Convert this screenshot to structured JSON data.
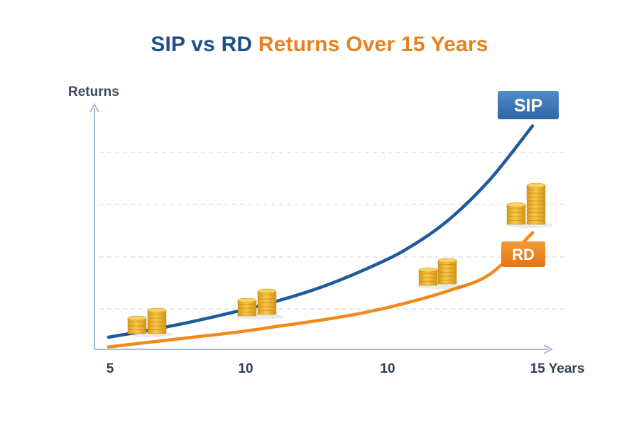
{
  "colors": {
    "sip": "#1f5a9a",
    "sip_label_bg": "#3a74b4",
    "rd": "#f08a1c",
    "rd_label_bg": "#eb7d1a",
    "axis": "#a9bdd6",
    "grid": "#d5dde6",
    "coin": "#f2b530",
    "coin_dark": "#c88a12",
    "text": "#2e3f55"
  },
  "title": {
    "part_a": "SIP vs RD",
    "part_b": "Returns Over 15 Years"
  },
  "chart_data": {
    "type": "line",
    "title": "SIP vs RD Returns Over 15 Years",
    "xlabel": "",
    "ylabel": "Returns",
    "x_tick_labels": [
      "5",
      "10",
      "10",
      "15 Years"
    ],
    "grid": "horizontal dashed",
    "y_ticks_printed": false,
    "series": [
      {
        "name": "SIP",
        "x": [
          0,
          1,
          2,
          3,
          4,
          5,
          6,
          7,
          8,
          9,
          10
        ],
        "values": [
          5,
          8,
          11.5,
          15.5,
          20,
          25.5,
          32.5,
          41,
          53,
          70,
          92
        ]
      },
      {
        "name": "RD",
        "x": [
          0,
          1,
          2,
          3,
          4,
          5,
          6,
          7,
          8,
          9,
          10
        ],
        "values": [
          1,
          3,
          5,
          7,
          9.5,
          12,
          15,
          19,
          24,
          31,
          48
        ]
      }
    ],
    "ylim": [
      0,
      100
    ],
    "xlim": [
      0,
      10
    ]
  },
  "icons": [
    "coin-stack-icon"
  ]
}
